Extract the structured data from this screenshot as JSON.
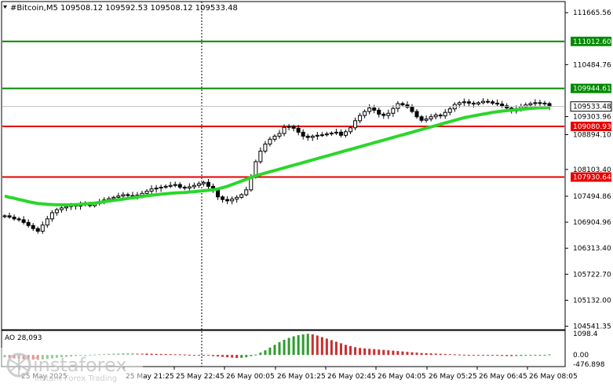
{
  "header": {
    "symbol_line": "#Bitcoin,M5  109508.12 109592.53 109508.12 109533.48"
  },
  "colors": {
    "background": "#ffffff",
    "candle": "#000000",
    "ma_line": "#2bd62b",
    "support_resistance": "#e60000",
    "target_levels": "#008a00",
    "label_text": "#ffffff",
    "ao_bar": "#2d9c2d",
    "ao_bar_down": "#c83030"
  },
  "chart_data": [
    {
      "type": "line",
      "title": "",
      "subtype": "candlestick",
      "price_axis_ticks": [
        "111665.56",
        "110484.76",
        "109303.96",
        "108894.10",
        "108103.40",
        "107494.86",
        "106904.96",
        "106313.40",
        "105722.70",
        "105132.00",
        "104541.35"
      ],
      "y_ticks": [
        111665.56,
        110484.76,
        109303.96,
        108894.1,
        108103.4,
        107494.86,
        106904.96,
        106313.4,
        105722.7,
        105132.0,
        104541.35
      ],
      "ylim": [
        104480,
        111900
      ],
      "time_axis_labels": [
        "25 May 2025",
        "25 May 21:25",
        "25 May 22:45",
        "26 May 00:05",
        "26 May 01:25",
        "26 May 02:45",
        "26 May 04:05",
        "26 May 05:25",
        "26 May 06:45",
        "26 May 08:05"
      ],
      "levels": [
        {
          "value": 111012.6,
          "label": "111012.60",
          "color": "#008a00"
        },
        {
          "value": 109944.61,
          "label": "109944.61",
          "color": "#008a00"
        },
        {
          "value": 109080.93,
          "label": "109080.93",
          "color": "#e60000"
        },
        {
          "value": 107930.64,
          "label": "107930.64",
          "color": "#e60000"
        }
      ],
      "current_price": {
        "value": 109533.48,
        "label": "109533.48"
      },
      "close_series": [
        107050,
        107020,
        106980,
        106960,
        106900,
        106830,
        106760,
        106700,
        106840,
        106980,
        107120,
        107190,
        107230,
        107260,
        107290,
        107270,
        107300,
        107320,
        107280,
        107330,
        107360,
        107410,
        107440,
        107470,
        107500,
        107530,
        107510,
        107490,
        107520,
        107560,
        107610,
        107660,
        107680,
        107700,
        107720,
        107740,
        107760,
        107700,
        107680,
        107710,
        107740,
        107780,
        107810,
        107720,
        107640,
        107480,
        107420,
        107390,
        107430,
        107470,
        107530,
        107640,
        107940,
        108280,
        108520,
        108680,
        108790,
        108860,
        108920,
        109060,
        109080,
        109040,
        108950,
        108860,
        108830,
        108860,
        108880,
        108890,
        108910,
        108930,
        108950,
        108880,
        108960,
        109050,
        109210,
        109330,
        109420,
        109500,
        109450,
        109360,
        109330,
        109380,
        109490,
        109600,
        109570,
        109520,
        109420,
        109300,
        109220,
        109250,
        109300,
        109340,
        109320,
        109400,
        109480,
        109580,
        109620,
        109640,
        109610,
        109590,
        109620,
        109650,
        109640,
        109610,
        109590,
        109550,
        109500,
        109430,
        109480,
        109530,
        109570,
        109600,
        109620,
        109610,
        109600,
        109533
      ],
      "ma_series": [
        107500,
        107470,
        107450,
        107420,
        107400,
        107370,
        107350,
        107330,
        107320,
        107310,
        107305,
        107300,
        107300,
        107300,
        107300,
        107305,
        107310,
        107320,
        107330,
        107340,
        107355,
        107370,
        107385,
        107400,
        107415,
        107430,
        107445,
        107460,
        107475,
        107490,
        107505,
        107520,
        107530,
        107540,
        107550,
        107560,
        107570,
        107575,
        107580,
        107590,
        107600,
        107610,
        107620,
        107630,
        107640,
        107660,
        107690,
        107720,
        107760,
        107800,
        107840,
        107880,
        107920,
        107960,
        107990,
        108020,
        108050,
        108080,
        108110,
        108140,
        108170,
        108200,
        108230,
        108260,
        108290,
        108320,
        108350,
        108380,
        108410,
        108440,
        108470,
        108500,
        108530,
        108560,
        108590,
        108620,
        108650,
        108680,
        108710,
        108740,
        108770,
        108800,
        108830,
        108860,
        108890,
        108920,
        108950,
        108980,
        109010,
        109040,
        109070,
        109100,
        109130,
        109160,
        109190,
        109220,
        109250,
        109280,
        109300,
        109320,
        109340,
        109360,
        109380,
        109400,
        109415,
        109430,
        109440,
        109450,
        109460,
        109470,
        109480,
        109490,
        109500,
        109505,
        109510,
        109515
      ]
    },
    {
      "type": "bar",
      "title": "",
      "indicator_label": "AO 28,093",
      "y_ticks_labels": [
        "1098.4",
        "0.00",
        "-476.898"
      ],
      "y_ticks": [
        1098.4,
        0.0,
        -476.898
      ],
      "ylim": [
        -560,
        1220
      ],
      "values": [
        -120,
        -150,
        -180,
        -200,
        -220,
        -230,
        -240,
        -250,
        -230,
        -210,
        -180,
        -150,
        -120,
        -100,
        -80,
        -60,
        -40,
        -20,
        0,
        20,
        35,
        50,
        60,
        70,
        80,
        90,
        95,
        100,
        90,
        80,
        70,
        60,
        55,
        50,
        45,
        40,
        35,
        30,
        20,
        10,
        0,
        -10,
        -20,
        -40,
        -60,
        -80,
        -100,
        -120,
        -140,
        -160,
        -150,
        -120,
        -60,
        20,
        120,
        240,
        380,
        520,
        660,
        780,
        880,
        960,
        1020,
        1060,
        1090,
        1060,
        1000,
        920,
        840,
        760,
        680,
        600,
        520,
        460,
        400,
        360,
        340,
        320,
        300,
        280,
        260,
        240,
        220,
        200,
        180,
        160,
        140,
        120,
        100,
        90,
        80,
        70,
        60,
        50,
        40,
        30,
        20,
        10,
        5,
        0,
        -5,
        -10,
        -20,
        -30,
        -40,
        -50,
        -55,
        -60,
        -55,
        -50,
        -40,
        -30,
        -20,
        -10,
        -5,
        28
      ]
    }
  ],
  "watermark": {
    "brand": "instaforex",
    "tagline": "Instant Forex Trading"
  }
}
